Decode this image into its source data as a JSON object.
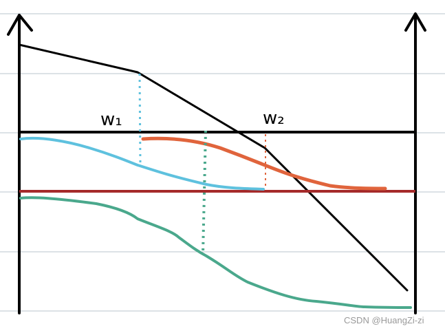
{
  "labels": [
    {
      "text": "w₁"
    },
    {
      "text": "w₂"
    }
  ],
  "watermark": "CSDN @HuangZi-zi"
}
